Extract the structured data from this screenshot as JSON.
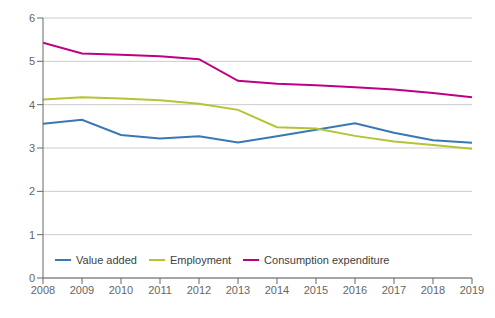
{
  "chart_data": {
    "type": "line",
    "x": [
      2008,
      2009,
      2010,
      2011,
      2012,
      2013,
      2014,
      2015,
      2016,
      2017,
      2018,
      2019
    ],
    "series": [
      {
        "name": "Value added",
        "color": "#3a78b5",
        "values": [
          3.56,
          3.65,
          3.3,
          3.22,
          3.27,
          3.13,
          3.27,
          3.42,
          3.57,
          3.35,
          3.18,
          3.12
        ]
      },
      {
        "name": "Employment",
        "color": "#b5c334",
        "values": [
          4.12,
          4.17,
          4.14,
          4.1,
          4.02,
          3.88,
          3.48,
          3.45,
          3.28,
          3.15,
          3.07,
          2.98
        ]
      },
      {
        "name": "Consumption expenditure",
        "color": "#be0082",
        "values": [
          5.43,
          5.18,
          5.15,
          5.12,
          5.05,
          4.55,
          4.48,
          4.45,
          4.4,
          4.35,
          4.27,
          4.17
        ]
      }
    ],
    "xlim": [
      2008,
      2019
    ],
    "xticks": [
      2008,
      2009,
      2010,
      2011,
      2012,
      2013,
      2014,
      2015,
      2016,
      2017,
      2018,
      2019
    ],
    "ylim": [
      0,
      6
    ],
    "yticks": [
      0,
      1,
      2,
      3,
      4,
      5,
      6
    ],
    "grid": true,
    "legend": "lower left"
  }
}
